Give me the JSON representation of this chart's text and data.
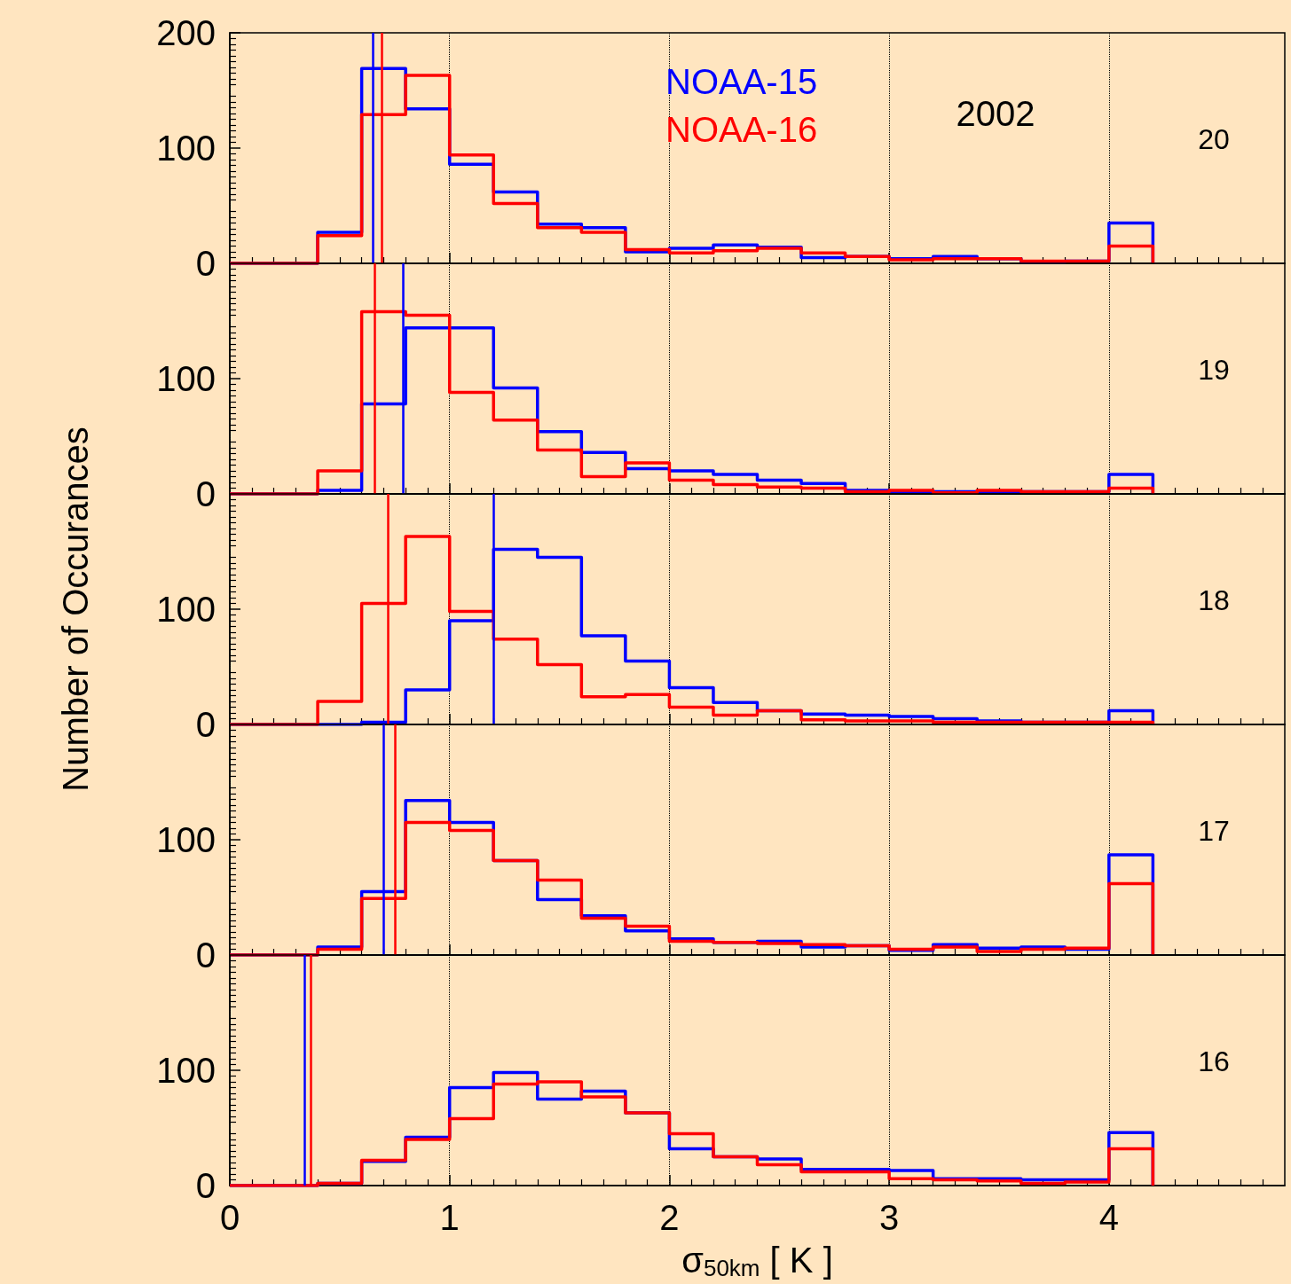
{
  "chart_data": [
    {
      "type": "histogram",
      "bins": [
        0,
        0.2,
        0.4,
        0.6,
        0.8,
        1.0,
        1.2,
        1.4,
        1.6,
        1.8,
        2.0,
        2.2,
        2.4,
        2.6,
        2.8,
        3.0,
        3.2,
        3.4,
        3.6,
        3.8,
        4.0,
        4.2
      ],
      "xlim": [
        0,
        4.8
      ],
      "xticks": [
        0,
        1,
        2,
        3,
        4
      ],
      "ylim": [
        0,
        200
      ],
      "yticks": [
        0,
        100,
        200
      ],
      "tick_labels": "y",
      "grid": "x",
      "legend": "top",
      "annotations": [
        "2002",
        "20"
      ],
      "series": [
        {
          "name": "NOAA-15",
          "color": "#0000ff",
          "values": [
            0,
            0,
            27,
            169,
            134,
            86,
            62,
            34,
            31,
            10,
            13,
            16,
            14,
            5,
            6,
            4,
            6,
            4,
            1,
            2,
            35
          ]
        },
        {
          "name": "NOAA-16",
          "color": "#ff0000",
          "values": [
            0,
            0,
            24,
            129,
            163,
            94,
            52,
            31,
            27,
            12,
            9,
            11,
            13,
            9,
            6,
            3,
            4,
            4,
            2,
            2,
            15
          ]
        }
      ],
      "ref_lines": [
        {
          "axis": "x",
          "value": 0.65,
          "color": "#0000ff"
        },
        {
          "axis": "x",
          "value": 0.69,
          "color": "#ff0000"
        }
      ]
    },
    {
      "type": "histogram",
      "bins": [
        0,
        0.2,
        0.4,
        0.6,
        0.8,
        1.0,
        1.2,
        1.4,
        1.6,
        1.8,
        2.0,
        2.2,
        2.4,
        2.6,
        2.8,
        3.0,
        3.2,
        3.4,
        3.6,
        3.8,
        4.0,
        4.2
      ],
      "xlim": [
        0,
        4.8
      ],
      "xticks": [
        0,
        1,
        2,
        3,
        4
      ],
      "ylim": [
        0,
        200
      ],
      "yticks": [
        0,
        100
      ],
      "tick_labels": "y",
      "grid": "x",
      "annotations": [
        "19"
      ],
      "series": [
        {
          "color": "#0000ff",
          "values": [
            0,
            0,
            3,
            78,
            144,
            144,
            92,
            54,
            36,
            22,
            20,
            17,
            12,
            9,
            3,
            2,
            2,
            2,
            2,
            2,
            17
          ]
        },
        {
          "color": "#ff0000",
          "values": [
            0,
            0,
            20,
            158,
            155,
            88,
            64,
            38,
            15,
            27,
            12,
            8,
            6,
            5,
            2,
            3,
            1,
            3,
            2,
            2,
            5
          ]
        }
      ],
      "ref_lines": [
        {
          "axis": "x",
          "value": 0.79,
          "color": "#0000ff"
        },
        {
          "axis": "x",
          "value": 0.66,
          "color": "#ff0000"
        }
      ]
    },
    {
      "type": "histogram",
      "bins": [
        0,
        0.2,
        0.4,
        0.6,
        0.8,
        1.0,
        1.2,
        1.4,
        1.6,
        1.8,
        2.0,
        2.2,
        2.4,
        2.6,
        2.8,
        3.0,
        3.2,
        3.4,
        3.6,
        3.8,
        4.0,
        4.2
      ],
      "xlim": [
        0,
        4.8
      ],
      "xticks": [
        0,
        1,
        2,
        3,
        4
      ],
      "ylim": [
        0,
        200
      ],
      "yticks": [
        0,
        100
      ],
      "tick_labels": "y",
      "grid": "x",
      "ylabel": "Number of Occurances",
      "annotations": [
        "18"
      ],
      "series": [
        {
          "color": "#0000ff",
          "values": [
            0,
            0,
            0,
            2,
            30,
            90,
            152,
            145,
            77,
            55,
            32,
            19,
            12,
            9,
            8,
            7,
            5,
            3,
            2,
            2,
            12
          ]
        },
        {
          "color": "#ff0000",
          "values": [
            0,
            0,
            20,
            105,
            163,
            98,
            74,
            52,
            24,
            26,
            15,
            8,
            12,
            4,
            3,
            3,
            2,
            2,
            2,
            2,
            2
          ]
        }
      ],
      "ref_lines": [
        {
          "axis": "x",
          "value": 1.2,
          "color": "#0000ff"
        },
        {
          "axis": "x",
          "value": 0.72,
          "color": "#ff0000"
        }
      ]
    },
    {
      "type": "histogram",
      "bins": [
        0,
        0.2,
        0.4,
        0.6,
        0.8,
        1.0,
        1.2,
        1.4,
        1.6,
        1.8,
        2.0,
        2.2,
        2.4,
        2.6,
        2.8,
        3.0,
        3.2,
        3.4,
        3.6,
        3.8,
        4.0,
        4.2
      ],
      "xlim": [
        0,
        4.8
      ],
      "xticks": [
        0,
        1,
        2,
        3,
        4
      ],
      "ylim": [
        0,
        200
      ],
      "yticks": [
        0,
        100
      ],
      "tick_labels": "y",
      "grid": "x",
      "annotations": [
        "17"
      ],
      "series": [
        {
          "color": "#0000ff",
          "values": [
            0,
            0,
            7,
            55,
            134,
            115,
            82,
            48,
            34,
            21,
            14,
            11,
            12,
            7,
            8,
            4,
            9,
            6,
            7,
            5,
            87
          ]
        },
        {
          "color": "#ff0000",
          "values": [
            0,
            0,
            5,
            49,
            115,
            108,
            82,
            65,
            32,
            25,
            12,
            11,
            10,
            9,
            8,
            5,
            7,
            3,
            5,
            6,
            62
          ]
        }
      ],
      "ref_lines": [
        {
          "axis": "x",
          "value": 0.7,
          "color": "#0000ff"
        },
        {
          "axis": "x",
          "value": 0.75,
          "color": "#ff0000"
        }
      ]
    },
    {
      "type": "histogram",
      "bins": [
        0,
        0.2,
        0.4,
        0.6,
        0.8,
        1.0,
        1.2,
        1.4,
        1.6,
        1.8,
        2.0,
        2.2,
        2.4,
        2.6,
        2.8,
        3.0,
        3.2,
        3.4,
        3.6,
        3.8,
        4.0,
        4.2
      ],
      "xlim": [
        0,
        4.8
      ],
      "xticks": [
        0,
        1,
        2,
        3,
        4
      ],
      "ylim": [
        0,
        200
      ],
      "yticks": [
        0,
        100
      ],
      "grid": "x",
      "xlabel": "σ$_{50km}$ [ K ]",
      "annotations": [
        "16"
      ],
      "series": [
        {
          "color": "#0000ff",
          "values": [
            0,
            0,
            2,
            21,
            42,
            85,
            98,
            75,
            82,
            63,
            32,
            25,
            23,
            14,
            14,
            13,
            6,
            6,
            5,
            5,
            46
          ]
        },
        {
          "color": "#ff0000",
          "values": [
            0,
            0,
            2,
            22,
            40,
            58,
            88,
            90,
            77,
            63,
            45,
            25,
            18,
            12,
            12,
            6,
            5,
            4,
            2,
            3,
            32
          ]
        }
      ],
      "ref_lines": [
        {
          "axis": "x",
          "value": 0.34,
          "color": "#0000ff"
        },
        {
          "axis": "x",
          "value": 0.37,
          "color": "#ff0000"
        }
      ]
    }
  ]
}
